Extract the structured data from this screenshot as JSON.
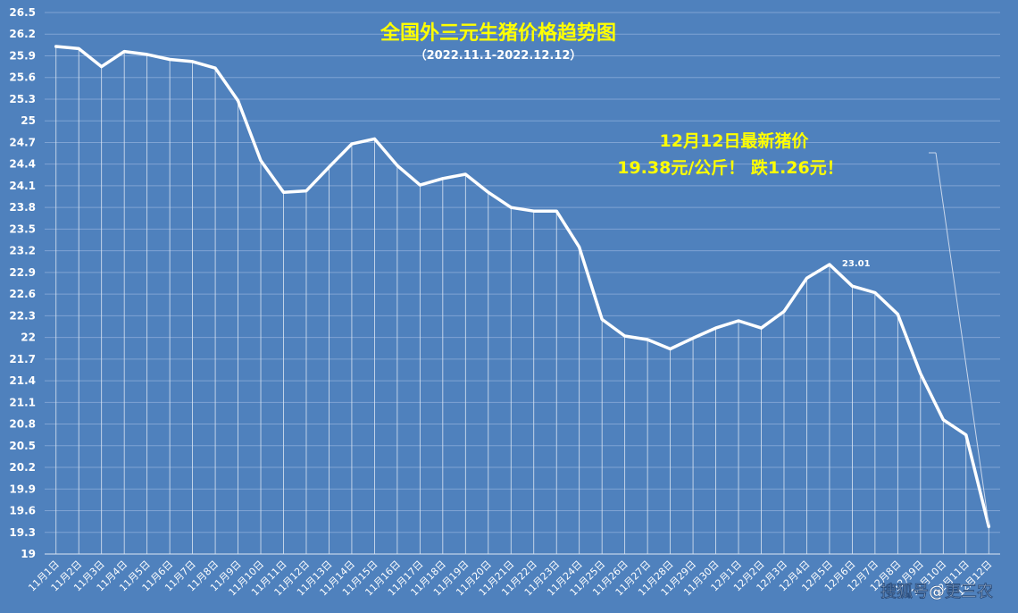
{
  "chart_data": {
    "type": "line",
    "title": "全国外三元生猪价格趋势图",
    "subtitle": "（2022.11.1-2022.12.12）",
    "annotation_line1": "12月12日最新猪价",
    "annotation_line2": "19.38元/公斤！ 跌1.26元！",
    "peak_label": "23.01",
    "watermark": "搜狐号@更三农",
    "ylim": [
      19,
      26.5
    ],
    "yticks": [
      "26.5",
      "26.2",
      "25.9",
      "25.6",
      "25.3",
      "25",
      "24.7",
      "24.4",
      "24.1",
      "23.8",
      "23.5",
      "23.2",
      "22.9",
      "22.6",
      "22.3",
      "22",
      "21.7",
      "21.4",
      "21.1",
      "20.8",
      "20.5",
      "20.2",
      "19.9",
      "19.6",
      "19.3",
      "19"
    ],
    "categories": [
      "11月1日",
      "11月2日",
      "11月3日",
      "11月4日",
      "11月5日",
      "11月6日",
      "11月7日",
      "11月8日",
      "11月9日",
      "11月10日",
      "11月11日",
      "11月12日",
      "11月13日",
      "11月14日",
      "11月15日",
      "11月16日",
      "11月17日",
      "11月18日",
      "11月19日",
      "11月20日",
      "11月21日",
      "11月22日",
      "11月23日",
      "11月24日",
      "11月25日",
      "11月26日",
      "11月27日",
      "11月28日",
      "11月29日",
      "11月30日",
      "12月1日",
      "12月2日",
      "12月3日",
      "12月4日",
      "12月5日",
      "12月6日",
      "12月7日",
      "12月8日",
      "12月9日",
      "12月10日",
      "12月11日",
      "12月12日"
    ],
    "values": [
      26.03,
      26.0,
      25.75,
      25.96,
      25.92,
      25.85,
      25.82,
      25.73,
      25.28,
      24.45,
      24.01,
      24.03,
      24.36,
      24.68,
      24.75,
      24.38,
      24.11,
      24.2,
      24.26,
      24.01,
      23.8,
      23.75,
      23.75,
      23.25,
      22.25,
      22.02,
      21.97,
      21.84,
      21.99,
      22.13,
      22.23,
      22.13,
      22.36,
      22.82,
      23.01,
      22.71,
      22.62,
      22.32,
      21.5,
      20.86,
      20.65,
      19.38
    ],
    "grid": true,
    "colors": {
      "background": "#4f81bd",
      "line": "#ffffff",
      "title": "#ffff00",
      "grid": "#7fa3d3"
    }
  }
}
